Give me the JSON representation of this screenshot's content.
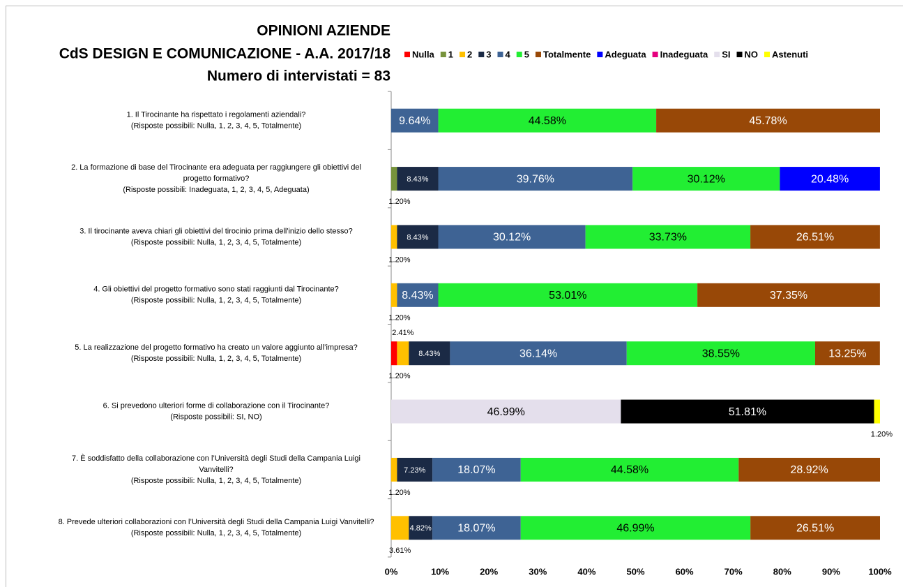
{
  "chart_data": {
    "type": "stacked-bar-horizontal",
    "title": [
      "OPINIONI AZIENDE",
      "CdS DESIGN E COMUNICAZIONE - A.A. 2017/18",
      "Numero di intervistati = 83"
    ],
    "categories": [
      [
        "1. Il Tirocinante ha rispettato i regolamenti aziendali?",
        "(Risposte possibili: Nulla, 1, 2, 3, 4, 5, Totalmente)"
      ],
      [
        "2. La formazione di base del Tirocinante era adeguata per raggiungere gli obiettivi del",
        "progetto formativo?",
        "(Risposte possibili:  Inadeguata, 1, 2, 3, 4, 5, Adeguata)"
      ],
      [
        "3. Il tirocinante aveva chiari gli obiettivi del tirocinio prima dell'inizio dello stesso?",
        "(Risposte possibili: Nulla, 1, 2, 3, 4, 5, Totalmente)"
      ],
      [
        "4. Gli obiettivi del progetto formativo sono stati raggiunti dal Tirocinante?",
        "(Risposte possibili: Nulla, 1, 2, 3, 4, 5, Totalmente)"
      ],
      [
        "5. La realizzazione del progetto formativo ha creato un valore aggiunto all’impresa?",
        "(Risposte possibili: Nulla, 1, 2, 3, 4, 5, Totalmente)"
      ],
      [
        "6. Si prevedono ulteriori forme di collaborazione con il Tirocinante?",
        "(Risposte possibili: SI, NO)"
      ],
      [
        "7. È soddisfatto della collaborazione con l’Università degli Studi della Campania Luigi",
        "Vanvitelli?",
        "(Risposte possibili: Nulla, 1, 2, 3, 4, 5, Totalmente)"
      ],
      [
        "8. Prevede ulteriori collaborazioni con l’Università degli Studi della Campania Luigi Vanvitelli?",
        "(Risposte possibili: Nulla, 1, 2, 3, 4, 5, Totalmente)"
      ]
    ],
    "series": [
      {
        "name": "Nulla",
        "color": "#ff0000",
        "values": [
          null,
          null,
          null,
          null,
          1.2,
          null,
          null,
          null
        ],
        "value_labels": [
          null,
          null,
          null,
          null,
          "1.20%",
          null,
          null,
          null
        ]
      },
      {
        "name": "1",
        "color": "#77933c",
        "values": [
          null,
          1.2,
          null,
          null,
          null,
          null,
          null,
          null
        ],
        "value_labels": [
          null,
          "1.20%",
          null,
          null,
          null,
          null,
          null,
          null
        ]
      },
      {
        "name": "2",
        "color": "#ffc000",
        "values": [
          null,
          null,
          1.2,
          1.2,
          2.41,
          null,
          1.2,
          3.61
        ],
        "value_labels": [
          null,
          null,
          "1.20%",
          "1.20%",
          "2.41%",
          null,
          "1.20%",
          "3.61%"
        ]
      },
      {
        "name": "3",
        "color": "#1b2a45",
        "values": [
          null,
          8.43,
          8.43,
          null,
          8.43,
          null,
          7.23,
          4.82
        ],
        "value_labels": [
          null,
          "8.43%",
          "8.43%",
          null,
          "8.43%",
          null,
          "7.23%",
          "4.82%"
        ]
      },
      {
        "name": "4",
        "color": "#3e6394",
        "values": [
          9.64,
          39.76,
          30.12,
          8.43,
          36.14,
          null,
          18.07,
          18.07
        ],
        "value_labels": [
          "9.64%",
          "39.76%",
          "30.12%",
          "8.43%",
          "36.14%",
          null,
          "18.07%",
          "18.07%"
        ]
      },
      {
        "name": "5",
        "color": "#22ee33",
        "values": [
          44.58,
          30.12,
          33.73,
          53.01,
          38.55,
          null,
          44.58,
          46.99
        ],
        "value_labels": [
          "44.58%",
          "30.12%",
          "33.73%",
          "53.01%",
          "38.55%",
          null,
          "44.58%",
          "46.99%"
        ]
      },
      {
        "name": "Totalmente",
        "color": "#984807",
        "values": [
          45.78,
          null,
          26.51,
          37.35,
          13.25,
          null,
          28.92,
          26.51
        ],
        "value_labels": [
          "45.78%",
          null,
          "26.51%",
          "37.35%",
          "13.25%",
          null,
          "28.92%",
          "26.51%"
        ]
      },
      {
        "name": "Adeguata",
        "color": "#0000ff",
        "values": [
          null,
          20.48,
          null,
          null,
          null,
          null,
          null,
          null
        ],
        "value_labels": [
          null,
          "20.48%",
          null,
          null,
          null,
          null,
          null,
          null
        ]
      },
      {
        "name": "Inadeguata",
        "color": "#e6007e",
        "values": [
          null,
          null,
          null,
          null,
          null,
          null,
          null,
          null
        ],
        "value_labels": [
          null,
          null,
          null,
          null,
          null,
          null,
          null,
          null
        ]
      },
      {
        "name": "SI",
        "color": "#e4dfec",
        "values": [
          null,
          null,
          null,
          null,
          null,
          46.99,
          null,
          null
        ],
        "value_labels": [
          null,
          null,
          null,
          null,
          null,
          "46.99%",
          null,
          null
        ]
      },
      {
        "name": "NO",
        "color": "#000000",
        "values": [
          null,
          null,
          null,
          null,
          null,
          51.81,
          null,
          null
        ],
        "value_labels": [
          null,
          null,
          null,
          null,
          null,
          "51.81%",
          null,
          null
        ]
      },
      {
        "name": "Astenuti",
        "color": "#ffff00",
        "values": [
          null,
          null,
          null,
          null,
          null,
          1.2,
          null,
          null
        ],
        "value_labels": [
          null,
          null,
          null,
          null,
          null,
          "1.20%",
          null,
          null
        ]
      }
    ],
    "xlim": [
      0,
      100
    ],
    "xticks": [
      {
        "value": 0,
        "label": "0%"
      },
      {
        "value": 10,
        "label": "10%"
      },
      {
        "value": 20,
        "label": "20%"
      },
      {
        "value": 30,
        "label": "30%"
      },
      {
        "value": 40,
        "label": "40%"
      },
      {
        "value": 50,
        "label": "50%"
      },
      {
        "value": 60,
        "label": "60%"
      },
      {
        "value": 70,
        "label": "70%"
      },
      {
        "value": 80,
        "label": "80%"
      },
      {
        "value": 90,
        "label": "90%"
      },
      {
        "value": 100,
        "label": "100%"
      }
    ],
    "legend": "top"
  }
}
